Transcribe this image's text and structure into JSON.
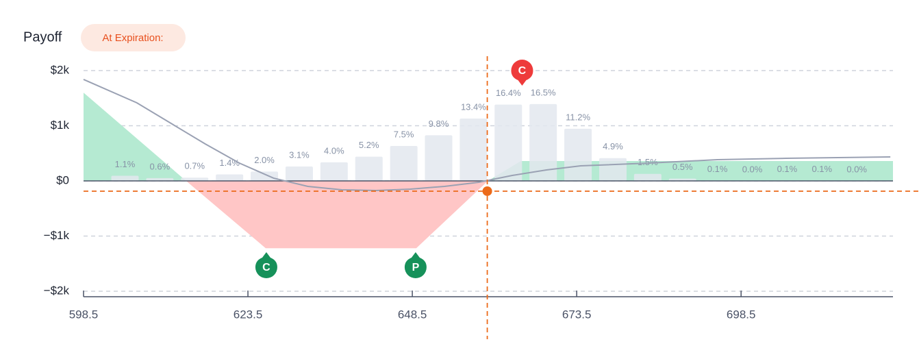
{
  "chart_data": {
    "type": "payoff",
    "title": "Payoff",
    "badge": "At Expiration:",
    "xlim": [
      598.5,
      721.6
    ],
    "xticks": [
      598.5,
      623.5,
      648.5,
      673.5,
      698.5
    ],
    "ylim": [
      -2000,
      2000
    ],
    "yticks": [
      {
        "value": 2000,
        "label": "$2k"
      },
      {
        "value": 1000,
        "label": "$1k"
      },
      {
        "value": 0,
        "label": "$0"
      },
      {
        "value": -1000,
        "label": "−$1k"
      },
      {
        "value": -2000,
        "label": "−$2k"
      }
    ],
    "grid": true,
    "y2lim": [
      0,
      23.7
    ],
    "bars": {
      "color": "#e3e7ef",
      "x": [
        604.8,
        610.1,
        615.4,
        620.7,
        626.0,
        631.3,
        636.6,
        641.9,
        647.2,
        652.5,
        657.8,
        663.1,
        668.4,
        673.7,
        679.0,
        684.3,
        689.6,
        694.9,
        700.2,
        705.5,
        710.8,
        716.1
      ],
      "values": [
        1.1,
        0.6,
        0.7,
        1.4,
        2.0,
        3.1,
        4.0,
        5.2,
        7.5,
        9.8,
        13.4,
        16.4,
        16.5,
        11.2,
        4.9,
        1.5,
        0.5,
        0.1,
        0.0,
        0.1,
        0.1,
        0.0
      ],
      "value_labels": [
        "1.1%",
        "0.6%",
        "0.7%",
        "1.4%",
        "2.0%",
        "3.1%",
        "4.0%",
        "5.2%",
        "7.5%",
        "9.8%",
        "13.4%",
        "16.4%",
        "16.5%",
        "11.2%",
        "4.9%",
        "1.5%",
        "0.5%",
        "0.1%",
        "0.0%",
        "0.1%",
        "0.1%",
        "0.0%"
      ]
    },
    "expiration": {
      "x": [
        598.5,
        614.1,
        626.2,
        649.1,
        660.0,
        665.0,
        721.6
      ],
      "values": [
        1600,
        0,
        -1220,
        -1220,
        0,
        360,
        360
      ],
      "profit_color": "#b5ead2",
      "loss_color": "#ffc6c6"
    },
    "current_curve": {
      "color": "#9aa1b3",
      "x": [
        598.5,
        606.6,
        611.8,
        617.0,
        622.2,
        627.4,
        632.6,
        637.8,
        643.0,
        648.2,
        653.4,
        658.6,
        663.7,
        668.9,
        674.1,
        684.5,
        694.9,
        705.3,
        721.2
      ],
      "values": [
        1839,
        1416,
        1043,
        671,
        323,
        50,
        -99,
        -161,
        -174,
        -149,
        -99,
        -25,
        99,
        199,
        273,
        323,
        385,
        410,
        435
      ]
    },
    "current": {
      "x": 659.9,
      "y": -186,
      "color": "#ec6a1a"
    },
    "markers": [
      {
        "label": "C",
        "x": 665.2,
        "color": "#ee3b3b",
        "side": "top"
      },
      {
        "label": "C",
        "x": 626.3,
        "color": "#16915a",
        "side": "bottom"
      },
      {
        "label": "P",
        "x": 649.0,
        "color": "#16915a",
        "side": "bottom"
      }
    ]
  }
}
